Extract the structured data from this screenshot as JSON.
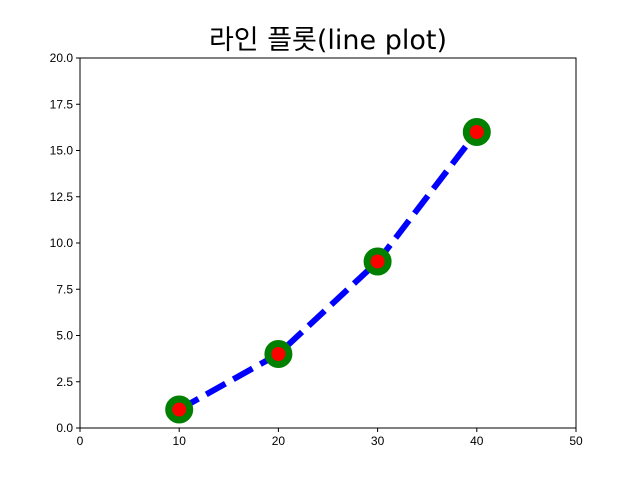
{
  "chart_data": {
    "type": "line",
    "title": "라인 플롯(line plot)",
    "xlabel": "",
    "ylabel": "",
    "xlim": [
      0,
      50
    ],
    "ylim": [
      0,
      20
    ],
    "x_ticks": [
      "0",
      "10",
      "20",
      "30",
      "40",
      "50"
    ],
    "y_ticks": [
      "0.0",
      "2.5",
      "5.0",
      "7.5",
      "10.0",
      "12.5",
      "15.0",
      "17.5",
      "20.0"
    ],
    "grid": false,
    "legend": null,
    "series": [
      {
        "x": [
          10,
          20,
          30,
          40
        ],
        "y": [
          1,
          4,
          9,
          16
        ],
        "line_color": "#0000ff",
        "line_style": "dashed",
        "marker": "circle",
        "marker_face_color": "#ff0000",
        "marker_edge_color": "#008000"
      }
    ]
  }
}
